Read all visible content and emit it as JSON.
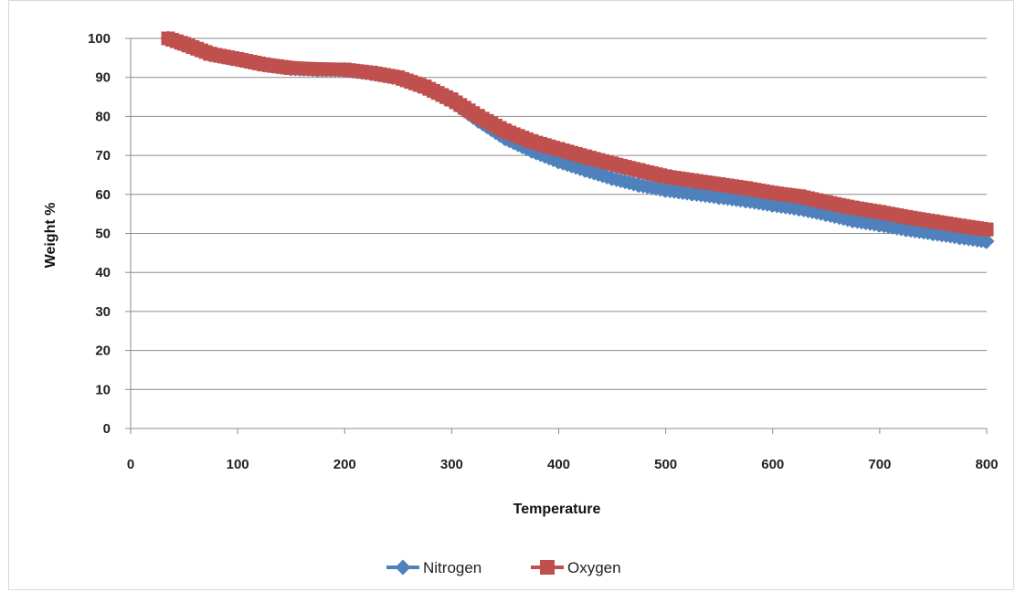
{
  "chart_data": {
    "type": "line",
    "xlabel": "Temperature",
    "ylabel": "Weight %",
    "xlim": [
      0,
      800
    ],
    "ylim": [
      0,
      100
    ],
    "x_ticks": [
      0,
      100,
      200,
      300,
      400,
      500,
      600,
      700,
      800
    ],
    "y_ticks": [
      0,
      10,
      20,
      30,
      40,
      50,
      60,
      70,
      80,
      90,
      100
    ],
    "grid": "horizontal",
    "legend_position": "bottom",
    "series": [
      {
        "name": "Nitrogen",
        "color": "#4f81bd",
        "marker": "diamond",
        "points": [
          [
            35,
            100
          ],
          [
            50,
            98.3
          ],
          [
            75,
            95.8
          ],
          [
            100,
            94.6
          ],
          [
            125,
            93.2
          ],
          [
            150,
            92.3
          ],
          [
            175,
            92.0
          ],
          [
            200,
            91.9
          ],
          [
            225,
            91.0
          ],
          [
            250,
            89.8
          ],
          [
            275,
            87.3
          ],
          [
            300,
            83.8
          ],
          [
            325,
            78.8
          ],
          [
            350,
            74.3
          ],
          [
            375,
            71.1
          ],
          [
            400,
            68.4
          ],
          [
            425,
            66.2
          ],
          [
            450,
            64.1
          ],
          [
            475,
            62.4
          ],
          [
            500,
            61.1
          ],
          [
            525,
            60.2
          ],
          [
            550,
            59.3
          ],
          [
            575,
            58.4
          ],
          [
            600,
            57.3
          ],
          [
            625,
            56.3
          ],
          [
            650,
            54.9
          ],
          [
            675,
            53.3
          ],
          [
            700,
            52.2
          ],
          [
            725,
            51.0
          ],
          [
            750,
            50.0
          ],
          [
            775,
            49.0
          ],
          [
            800,
            48.0
          ]
        ]
      },
      {
        "name": "Oxygen",
        "color": "#c0504d",
        "marker": "square",
        "points": [
          [
            35,
            100
          ],
          [
            50,
            98.6
          ],
          [
            75,
            96.0
          ],
          [
            100,
            94.7
          ],
          [
            125,
            93.3
          ],
          [
            150,
            92.4
          ],
          [
            175,
            92.1
          ],
          [
            200,
            92.0
          ],
          [
            225,
            91.2
          ],
          [
            250,
            90.0
          ],
          [
            275,
            87.6
          ],
          [
            300,
            84.3
          ],
          [
            325,
            80.0
          ],
          [
            350,
            76.3
          ],
          [
            375,
            73.6
          ],
          [
            400,
            71.6
          ],
          [
            425,
            69.7
          ],
          [
            450,
            67.9
          ],
          [
            475,
            66.2
          ],
          [
            500,
            64.6
          ],
          [
            525,
            63.6
          ],
          [
            550,
            62.6
          ],
          [
            575,
            61.6
          ],
          [
            600,
            60.4
          ],
          [
            625,
            59.5
          ],
          [
            650,
            58.0
          ],
          [
            675,
            56.6
          ],
          [
            700,
            55.5
          ],
          [
            725,
            54.2
          ],
          [
            750,
            53.1
          ],
          [
            775,
            52.0
          ],
          [
            800,
            51.0
          ]
        ]
      }
    ]
  }
}
